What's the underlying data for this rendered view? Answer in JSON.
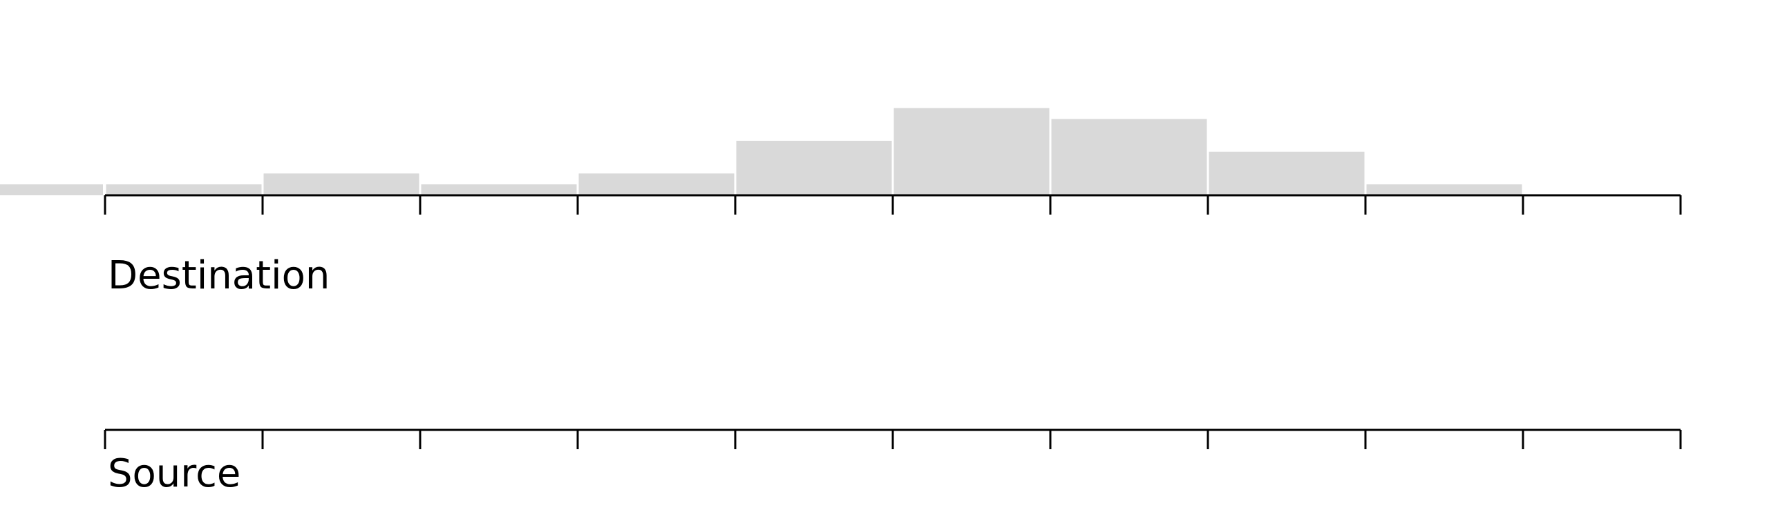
{
  "chart_data": {
    "type": "bar",
    "bar_color": "#d9d9d9",
    "axis_color": "#000000",
    "bin_count": 10,
    "values": [
      1,
      2,
      1,
      2,
      5,
      8,
      7,
      4,
      1,
      0
    ],
    "offscreen_left_value": 1,
    "ylim": [
      0,
      10
    ],
    "axes": [
      {
        "label": "Destination",
        "ticks": 11
      },
      {
        "label": "Source",
        "ticks": 11
      }
    ]
  }
}
